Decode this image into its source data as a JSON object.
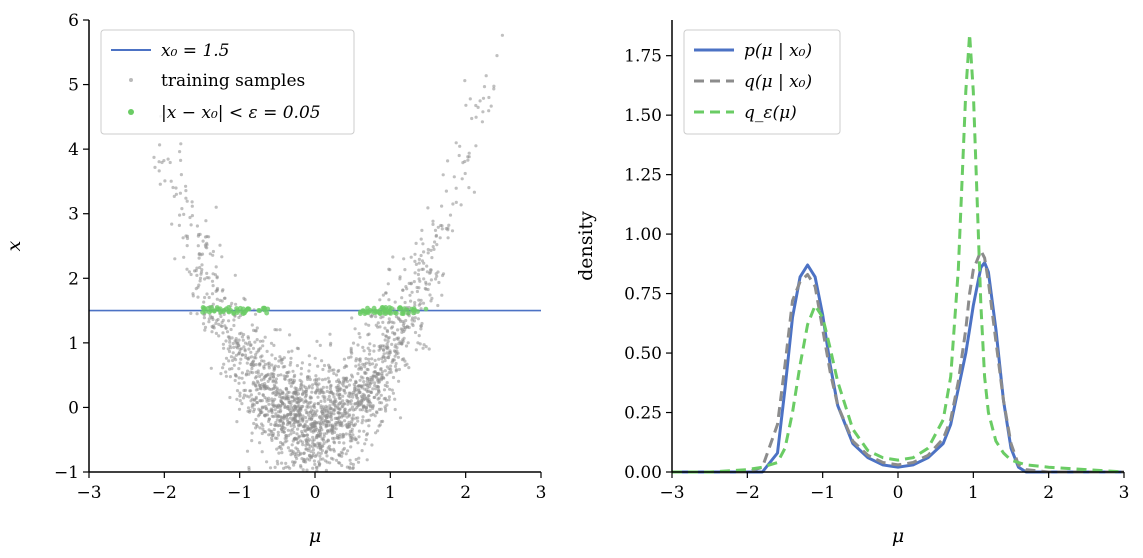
{
  "chart_data": [
    {
      "type": "scatter",
      "xlabel": "μ",
      "ylabel": "x",
      "xlim": [
        -3,
        3
      ],
      "ylim": [
        -1,
        6
      ],
      "xticks": [
        -3,
        -2,
        -1,
        0,
        1,
        2,
        3
      ],
      "yticks": [
        -1,
        0,
        1,
        2,
        3,
        4,
        5,
        6
      ],
      "xtick_labels": [
        "−3",
        "−2",
        "−1",
        "0",
        "1",
        "2",
        "3"
      ],
      "ytick_labels": [
        "−1",
        "0",
        "1",
        "2",
        "3",
        "4",
        "5",
        "6"
      ],
      "grid": false,
      "legend_placement": "top-left",
      "hline": {
        "y": 1.5,
        "label": "x₀ = 1.5",
        "color": "#4c72c4"
      },
      "series": [
        {
          "name": "training samples",
          "kind": "scatter",
          "color": "#8c8c8c",
          "n_points": 2000,
          "model": "x ≈ μ² + noise"
        },
        {
          "name": "|x − x₀| < ε = 0.05",
          "kind": "scatter",
          "color": "#6acc64",
          "y_band": [
            1.45,
            1.55
          ],
          "mu_clusters": [
            [
              -1.5,
              -0.6
            ],
            [
              0.6,
              1.5
            ]
          ]
        }
      ]
    },
    {
      "type": "line",
      "xlabel": "μ",
      "ylabel": "density",
      "xlim": [
        -3,
        3
      ],
      "ylim": [
        0,
        1.9
      ],
      "xticks": [
        -3,
        -2,
        -1,
        0,
        1,
        2,
        3
      ],
      "yticks": [
        0,
        0.25,
        0.5,
        0.75,
        1.0,
        1.25,
        1.5,
        1.75
      ],
      "xtick_labels": [
        "−3",
        "−2",
        "−1",
        "0",
        "1",
        "2",
        "3"
      ],
      "ytick_labels": [
        "0.00",
        "0.25",
        "0.50",
        "0.75",
        "1.00",
        "1.25",
        "1.50",
        "1.75"
      ],
      "grid": false,
      "legend_placement": "top-left",
      "x": [
        -3.0,
        -2.5,
        -2.0,
        -1.8,
        -1.6,
        -1.5,
        -1.4,
        -1.3,
        -1.2,
        -1.1,
        -1.0,
        -0.9,
        -0.8,
        -0.6,
        -0.4,
        -0.2,
        0.0,
        0.2,
        0.4,
        0.6,
        0.7,
        0.8,
        0.9,
        0.95,
        1.0,
        1.1,
        1.15,
        1.2,
        1.3,
        1.4,
        1.5,
        1.6,
        1.7,
        2.0,
        2.5,
        3.0
      ],
      "series": [
        {
          "name": "p(μ | x₀)",
          "style": "solid",
          "color": "#4c72c4",
          "values": [
            0.0,
            0.0,
            0.0,
            0.0,
            0.08,
            0.35,
            0.65,
            0.82,
            0.87,
            0.82,
            0.66,
            0.45,
            0.28,
            0.12,
            0.06,
            0.03,
            0.02,
            0.03,
            0.06,
            0.12,
            0.2,
            0.35,
            0.5,
            0.6,
            0.7,
            0.86,
            0.88,
            0.84,
            0.6,
            0.3,
            0.1,
            0.02,
            0.0,
            0.0,
            0.0,
            0.0
          ]
        },
        {
          "name": "q(μ | x₀)",
          "style": "dashed",
          "color": "#8c8c8c",
          "values": [
            0.0,
            0.0,
            0.0,
            0.02,
            0.2,
            0.45,
            0.72,
            0.8,
            0.83,
            0.78,
            0.6,
            0.42,
            0.28,
            0.13,
            0.07,
            0.04,
            0.03,
            0.04,
            0.07,
            0.14,
            0.22,
            0.38,
            0.6,
            0.75,
            0.85,
            0.93,
            0.9,
            0.8,
            0.55,
            0.3,
            0.12,
            0.03,
            0.01,
            0.0,
            0.0,
            0.0
          ]
        },
        {
          "name": "q_ε(μ)",
          "style": "dashed",
          "color": "#6acc64",
          "values": [
            0.0,
            0.0,
            0.01,
            0.02,
            0.04,
            0.1,
            0.25,
            0.45,
            0.62,
            0.7,
            0.65,
            0.52,
            0.38,
            0.18,
            0.09,
            0.06,
            0.05,
            0.06,
            0.1,
            0.22,
            0.4,
            0.85,
            1.6,
            1.84,
            1.6,
            0.7,
            0.4,
            0.25,
            0.13,
            0.08,
            0.05,
            0.04,
            0.03,
            0.02,
            0.01,
            0.0
          ]
        }
      ]
    }
  ]
}
